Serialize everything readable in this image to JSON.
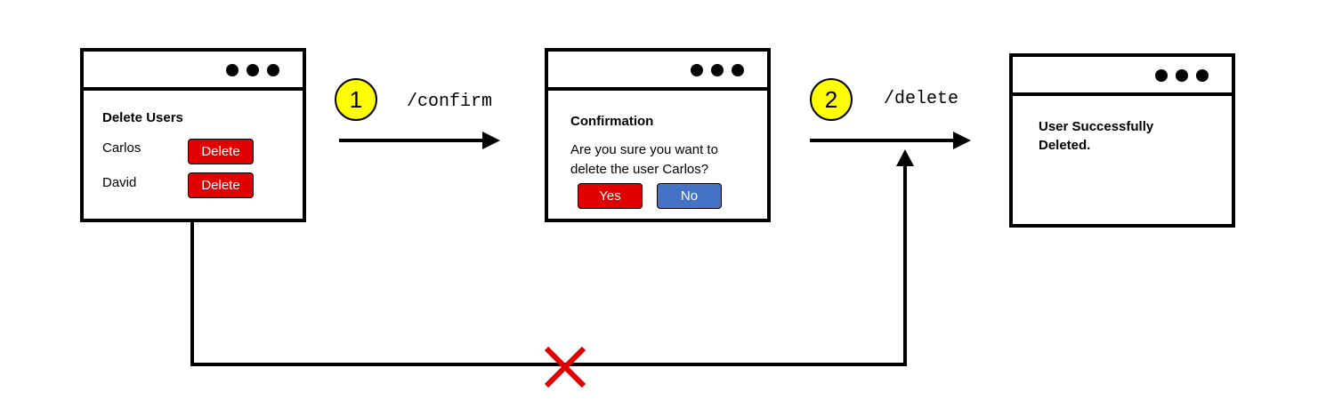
{
  "screen1": {
    "title": "Delete Users",
    "users": [
      {
        "name": "Carlos",
        "button": "Delete"
      },
      {
        "name": "David",
        "button": "Delete"
      }
    ]
  },
  "step1": {
    "number": "1",
    "endpoint": "/confirm"
  },
  "screen2": {
    "title": "Confirmation",
    "question_line1": "Are you sure you want to",
    "question_line2": "delete the user Carlos?",
    "yes_label": "Yes",
    "no_label": "No"
  },
  "step2": {
    "number": "2",
    "endpoint": "/delete"
  },
  "screen3": {
    "message_line1": "User Successfully",
    "message_line2": "Deleted."
  },
  "colors": {
    "delete_red": "#e00000",
    "no_blue": "#4472c4",
    "step_yellow": "#ffff00",
    "blocked_x": "#e00000"
  }
}
